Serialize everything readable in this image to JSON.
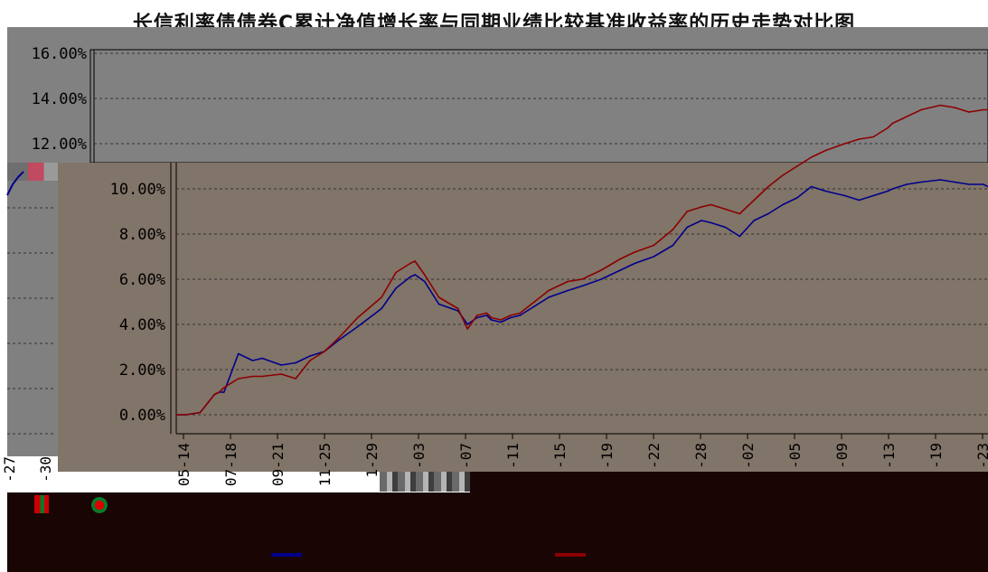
{
  "title": "长信利率债债券C累计净值增长率与同期业绩比较基准收益率的历史走势对比图",
  "colors": {
    "plot_background": "#818181",
    "main_plot_background": "#817468",
    "grid": "#333333",
    "fund": "#00008b",
    "benchmark": "#8b0000",
    "axis_text": "#000000"
  },
  "chart_data": {
    "type": "line",
    "title": "长信利率债债券C累计净值增长率与同期业绩比较基准收益率的历史走势对比图",
    "xlabel": "",
    "ylabel": "",
    "ylim": [
      -0.5,
      16.5
    ],
    "yticks": [
      "0.00%",
      "2.00%",
      "4.00%",
      "6.00%",
      "8.00%",
      "10.00%",
      "12.00%",
      "14.00%",
      "16.00%"
    ],
    "y_tick_values": [
      0,
      2,
      4,
      6,
      8,
      10,
      12,
      14,
      16
    ],
    "xticks": [
      "05-14",
      "07-18",
      "09-21",
      "11-25",
      "1-29",
      "-03",
      "-07",
      "-11",
      "-15",
      "-19",
      "-22",
      "-28",
      "-02",
      "-05",
      "-09",
      "-13",
      "-19",
      "-23"
    ],
    "left_panel_xticks": [
      "-27",
      "-30"
    ],
    "grid": true,
    "series": [
      {
        "color": "#00008b",
        "x": [
          0,
          0.2,
          0.5,
          0.8,
          0.9,
          1.0,
          1.3,
          1.6,
          1.8,
          2.2,
          2.5,
          2.8,
          3.1,
          3.4,
          3.8,
          4.3,
          4.6,
          4.9,
          5.0,
          5.2,
          5.5,
          5.9,
          6.1,
          6.3,
          6.5,
          6.6,
          6.8,
          7.0,
          7.2,
          7.5,
          7.8,
          8.2,
          8.5,
          8.9,
          9.3,
          9.6,
          10.0,
          10.4,
          10.7,
          11.0,
          11.2,
          11.5,
          11.8,
          12.1,
          12.4,
          12.7,
          13.0,
          13.3,
          13.6,
          14.0,
          14.3,
          14.6,
          14.9,
          15.0,
          15.3,
          15.6,
          16.0,
          16.3,
          16.6,
          16.9,
          17.0
        ],
        "y": [
          0.0,
          0.0,
          0.1,
          0.9,
          1.0,
          1.0,
          2.7,
          2.4,
          2.5,
          2.2,
          2.3,
          2.6,
          2.8,
          3.3,
          3.9,
          4.7,
          5.6,
          6.1,
          6.2,
          5.9,
          4.9,
          4.6,
          4.0,
          4.3,
          4.4,
          4.2,
          4.1,
          4.3,
          4.4,
          4.8,
          5.2,
          5.5,
          5.7,
          6.0,
          6.4,
          6.7,
          7.0,
          7.5,
          8.3,
          8.6,
          8.5,
          8.3,
          7.9,
          8.6,
          8.9,
          9.3,
          9.6,
          10.1,
          9.9,
          9.7,
          9.5,
          9.7,
          9.9,
          10.0,
          10.2,
          10.3,
          10.4,
          10.3,
          10.2,
          10.2,
          10.1
        ]
      },
      {
        "color": "#8b0000",
        "x": [
          0,
          0.2,
          0.5,
          0.8,
          0.9,
          1.0,
          1.3,
          1.6,
          1.8,
          2.2,
          2.5,
          2.8,
          3.1,
          3.4,
          3.8,
          4.3,
          4.6,
          4.9,
          5.0,
          5.2,
          5.5,
          5.9,
          6.1,
          6.3,
          6.5,
          6.6,
          6.8,
          7.0,
          7.2,
          7.5,
          7.8,
          8.2,
          8.5,
          8.9,
          9.3,
          9.6,
          10.0,
          10.4,
          10.7,
          11.0,
          11.2,
          11.5,
          11.8,
          12.1,
          12.4,
          12.7,
          13.0,
          13.3,
          13.6,
          14.0,
          14.3,
          14.6,
          14.9,
          15.0,
          15.3,
          15.6,
          16.0,
          16.3,
          16.6,
          16.9,
          17.0
        ],
        "y": [
          0.0,
          0.0,
          0.1,
          0.9,
          1.0,
          1.2,
          1.6,
          1.7,
          1.7,
          1.8,
          1.6,
          2.4,
          2.8,
          3.4,
          4.3,
          5.2,
          6.3,
          6.7,
          6.8,
          6.2,
          5.2,
          4.7,
          3.8,
          4.4,
          4.5,
          4.3,
          4.2,
          4.4,
          4.5,
          5.0,
          5.5,
          5.9,
          6.0,
          6.4,
          6.9,
          7.2,
          7.5,
          8.2,
          9.0,
          9.2,
          9.3,
          9.1,
          8.9,
          9.5,
          10.1,
          10.6,
          11.0,
          11.4,
          11.7,
          12.0,
          12.2,
          12.3,
          12.7,
          12.9,
          13.2,
          13.5,
          13.7,
          13.6,
          13.4,
          13.5,
          13.5
        ]
      }
    ]
  }
}
